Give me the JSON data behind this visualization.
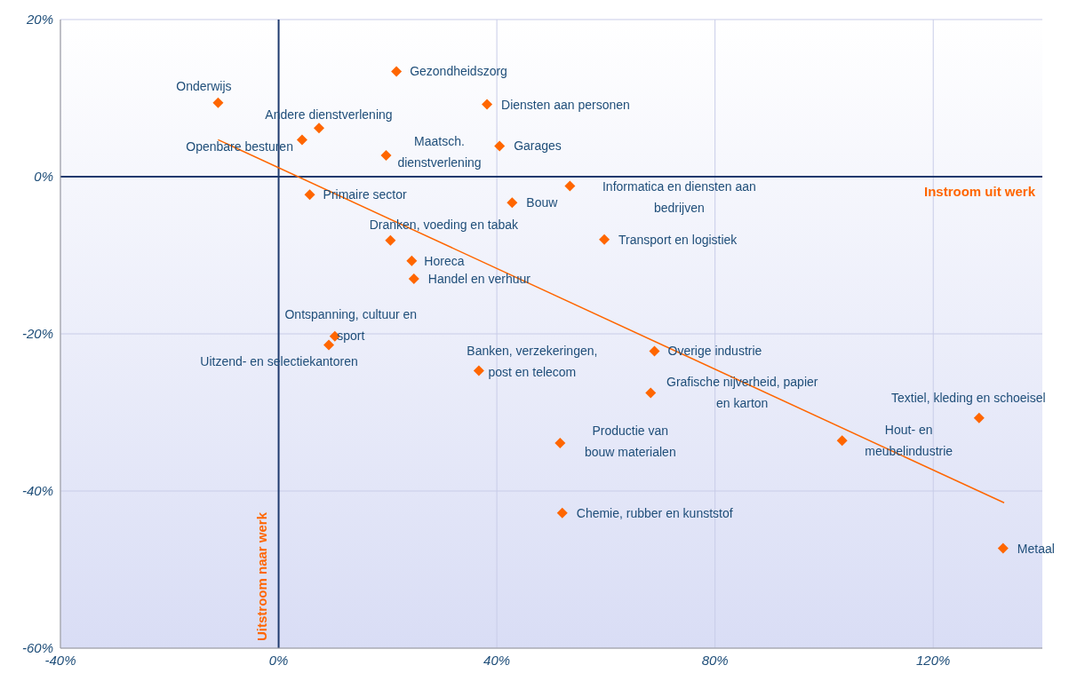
{
  "chart_data": {
    "type": "scatter",
    "xlabel": "Instroom uit werk",
    "ylabel": "Uitstroom naar werk",
    "xlim": [
      -40,
      140
    ],
    "ylim": [
      -60,
      20
    ],
    "xticks": [
      {
        "value": -40,
        "label": "-40%"
      },
      {
        "value": 0,
        "label": "0%"
      },
      {
        "value": 40,
        "label": "40%"
      },
      {
        "value": 80,
        "label": "80%"
      },
      {
        "value": 120,
        "label": "120%"
      }
    ],
    "yticks": [
      {
        "value": -60,
        "label": "-60%"
      },
      {
        "value": -40,
        "label": "-40%"
      },
      {
        "value": -20,
        "label": "-20%"
      },
      {
        "value": 0,
        "label": "0%"
      },
      {
        "value": 20,
        "label": "20%"
      }
    ],
    "grid": true,
    "series": [
      {
        "type": "scatter",
        "marker": "diamond",
        "color": "#ff6600",
        "x": [
          -11.1,
          21.6,
          38.2,
          7.4,
          4.3,
          19.7,
          40.5,
          53.4,
          5.7,
          42.8,
          20.5,
          59.7,
          24.4,
          24.8,
          10.3,
          9.2,
          36.7,
          68.9,
          68.2,
          51.6,
          52.0,
          103.3,
          128.4,
          132.8
        ],
        "values": [
          9.4,
          13.4,
          9.2,
          6.2,
          4.7,
          2.7,
          3.9,
          -1.2,
          -2.3,
          -3.3,
          -8.1,
          -8.0,
          -10.7,
          -13.0,
          -20.3,
          -21.4,
          -24.7,
          -22.2,
          -27.5,
          -33.9,
          -42.8,
          -33.6,
          -30.7,
          -47.3
        ]
      },
      {
        "type": "line",
        "color": "#ff6600",
        "x": [
          -11.1,
          133
        ],
        "values": [
          4.7,
          -41.5
        ]
      }
    ],
    "annotations": [
      {
        "text": "Onderwijs",
        "x": -11.1,
        "y": 9.4
      },
      {
        "text": "Gezondheidszorg",
        "x": 21.6,
        "y": 13.4
      },
      {
        "text": "Diensten aan personen",
        "x": 38.2,
        "y": 9.2
      },
      {
        "text": "Andere dienstverlening",
        "x": 7.4,
        "y": 6.2
      },
      {
        "text": "Openbare besturen",
        "x": 4.3,
        "y": 4.7
      },
      {
        "text": "Maatsch.\ndienstverlening",
        "x": 19.7,
        "y": 2.7
      },
      {
        "text": "Garages",
        "x": 40.5,
        "y": 3.9
      },
      {
        "text": "Informatica en diensten aan\nbedrijven",
        "x": 53.4,
        "y": -1.2
      },
      {
        "text": "Primaire sector",
        "x": 5.7,
        "y": -2.3
      },
      {
        "text": "Bouw",
        "x": 42.8,
        "y": -3.3
      },
      {
        "text": "Dranken, voeding en tabak",
        "x": 20.5,
        "y": -8.1
      },
      {
        "text": "Transport en logistiek",
        "x": 59.7,
        "y": -8.0
      },
      {
        "text": "Horeca",
        "x": 24.4,
        "y": -10.7
      },
      {
        "text": "Handel en verhuur",
        "x": 24.8,
        "y": -13.0
      },
      {
        "text": "Ontspanning, cultuur en\nsport",
        "x": 10.3,
        "y": -20.3
      },
      {
        "text": "Uitzend- en selectiekantoren",
        "x": 9.2,
        "y": -21.4
      },
      {
        "text": "Banken, verzekeringen,\npost en telecom",
        "x": 36.7,
        "y": -24.7
      },
      {
        "text": "Overige industrie",
        "x": 68.9,
        "y": -22.2
      },
      {
        "text": "Grafische nijverheid, papier\nen karton",
        "x": 68.2,
        "y": -27.5
      },
      {
        "text": "Productie van\nbouw materialen",
        "x": 51.6,
        "y": -33.9
      },
      {
        "text": "Chemie, rubber en kunststof",
        "x": 52.0,
        "y": -42.8
      },
      {
        "text": "Hout- en\nmeubelindustrie",
        "x": 103.3,
        "y": -33.6
      },
      {
        "text": "Textiel, kleding en schoeisel",
        "x": 128.4,
        "y": -30.7
      },
      {
        "text": "Metaal",
        "x": 132.8,
        "y": -47.3
      }
    ]
  }
}
